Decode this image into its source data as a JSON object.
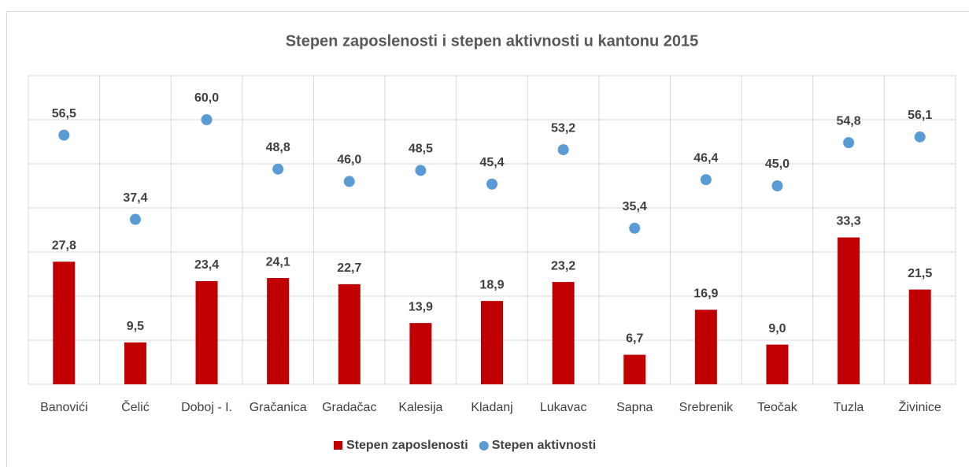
{
  "chart_data": {
    "type": "bar",
    "title": "Stepen zaposlenosti i stepen aktivnosti u kantonu 2015",
    "categories": [
      "Banovići",
      "Čelić",
      "Doboj - I.",
      "Gračanica",
      "Gradačac",
      "Kalesija",
      "Kladanj",
      "Lukavac",
      "Sapna",
      "Srebrenik",
      "Teočak",
      "Tuzla",
      "Živinice"
    ],
    "series": [
      {
        "name": "Stepen zaposlenosti",
        "type": "bar",
        "color": "#c00000",
        "values": [
          27.8,
          9.5,
          23.4,
          24.1,
          22.7,
          13.9,
          18.9,
          23.2,
          6.7,
          16.9,
          9.0,
          33.3,
          21.5
        ],
        "value_labels": [
          "27,8",
          "9,5",
          "23,4",
          "24,1",
          "22,7",
          "13,9",
          "18,9",
          "23,2",
          "6,7",
          "16,9",
          "9,0",
          "33,3",
          "21,5"
        ]
      },
      {
        "name": "Stepen aktivnosti",
        "type": "scatter",
        "color": "#5b9bd5",
        "values": [
          56.5,
          37.4,
          60.0,
          48.8,
          46.0,
          48.5,
          45.4,
          53.2,
          35.4,
          46.4,
          45.0,
          54.8,
          56.1
        ],
        "value_labels": [
          "56,5",
          "37,4",
          "60,0",
          "48,8",
          "46,0",
          "48,5",
          "45,4",
          "53,2",
          "35,4",
          "46,4",
          "45,0",
          "54,8",
          "56,1"
        ]
      }
    ],
    "ylim": [
      0,
      70
    ],
    "yticks": [
      0,
      10,
      20,
      30,
      40,
      50,
      60,
      70
    ],
    "grid": true,
    "legend": "bottom"
  }
}
